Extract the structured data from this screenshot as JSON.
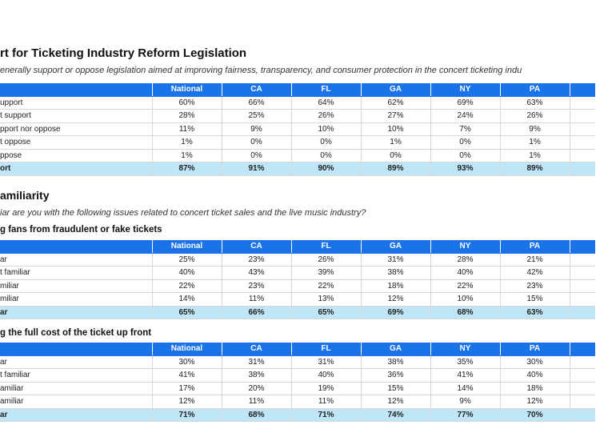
{
  "columns": [
    "National",
    "CA",
    "FL",
    "GA",
    "NY",
    "PA"
  ],
  "section1": {
    "title": "rt for Ticketing Industry Reform Legislation",
    "subtitle": "enerally support or oppose legislation aimed at improving fairness, transparency, and consumer protection in the concert ticketing indu",
    "rows": [
      {
        "label": "upport",
        "values": [
          "60%",
          "66%",
          "64%",
          "62%",
          "69%",
          "63%"
        ]
      },
      {
        "label": "t support",
        "values": [
          "28%",
          "25%",
          "26%",
          "27%",
          "24%",
          "26%"
        ]
      },
      {
        "label": "pport nor oppose",
        "values": [
          "11%",
          "9%",
          "10%",
          "10%",
          "7%",
          "9%"
        ]
      },
      {
        "label": "t oppose",
        "values": [
          "1%",
          "0%",
          "0%",
          "1%",
          "0%",
          "1%"
        ]
      },
      {
        "label": "ppose",
        "values": [
          "1%",
          "0%",
          "0%",
          "0%",
          "0%",
          "1%"
        ]
      }
    ],
    "total": {
      "label": "ort",
      "values": [
        "87%",
        "91%",
        "90%",
        "89%",
        "93%",
        "89%"
      ]
    }
  },
  "section2": {
    "title": "amiliarity",
    "subtitle": "iar are you with the following issues related to concert ticket sales and the live music industry?",
    "tableA": {
      "heading": "g fans from fraudulent or fake tickets",
      "rows": [
        {
          "label": "ar",
          "values": [
            "25%",
            "23%",
            "26%",
            "31%",
            "28%",
            "21%"
          ]
        },
        {
          "label": "t familiar",
          "values": [
            "40%",
            "43%",
            "39%",
            "38%",
            "40%",
            "42%"
          ]
        },
        {
          "label": "miliar",
          "values": [
            "22%",
            "23%",
            "22%",
            "18%",
            "22%",
            "23%"
          ]
        },
        {
          "label": "miliar",
          "values": [
            "14%",
            "11%",
            "13%",
            "12%",
            "10%",
            "15%"
          ]
        }
      ],
      "total": {
        "label": "ar",
        "values": [
          "65%",
          "66%",
          "65%",
          "69%",
          "68%",
          "63%"
        ]
      }
    },
    "tableB": {
      "heading": "g the full cost of the ticket up front",
      "rows": [
        {
          "label": "ar",
          "values": [
            "30%",
            "31%",
            "31%",
            "38%",
            "35%",
            "30%"
          ]
        },
        {
          "label": "t familiar",
          "values": [
            "41%",
            "38%",
            "40%",
            "36%",
            "41%",
            "40%"
          ]
        },
        {
          "label": "amiliar",
          "values": [
            "17%",
            "20%",
            "19%",
            "15%",
            "14%",
            "18%"
          ]
        },
        {
          "label": "amiliar",
          "values": [
            "12%",
            "11%",
            "11%",
            "12%",
            "9%",
            "12%"
          ]
        }
      ],
      "total": {
        "label": "ar",
        "values": [
          "71%",
          "68%",
          "71%",
          "74%",
          "77%",
          "70%"
        ]
      }
    }
  }
}
